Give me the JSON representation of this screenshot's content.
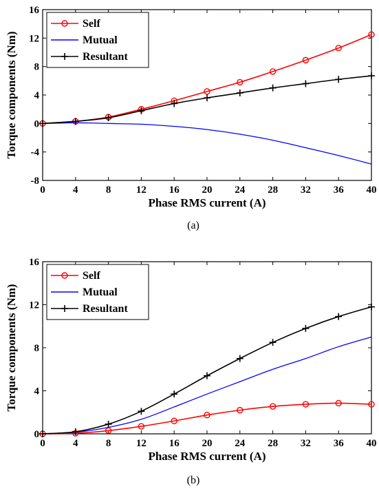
{
  "chart_data": [
    {
      "type": "line",
      "caption": "(a)",
      "xlabel": "Phase RMS current (A)",
      "ylabel": "Torque components (Nm)",
      "xlim": [
        0,
        40
      ],
      "ylim": [
        -8,
        16
      ],
      "xticks": [
        "0",
        "4",
        "8",
        "12",
        "16",
        "20",
        "24",
        "28",
        "32",
        "36",
        "40"
      ],
      "yticks": [
        "-8",
        "-4",
        "0",
        "4",
        "8",
        "12",
        "16"
      ],
      "legend_position": "top-left",
      "x": [
        0,
        4,
        8,
        12,
        16,
        20,
        24,
        28,
        32,
        36,
        40
      ],
      "series": [
        {
          "name": "Self",
          "color": "#ff0000",
          "marker": "circle",
          "values": [
            0,
            0.3,
            0.9,
            2.0,
            3.2,
            4.5,
            5.8,
            7.3,
            8.9,
            10.6,
            12.5
          ]
        },
        {
          "name": "Mutual",
          "color": "#0000ff",
          "marker": "none",
          "values": [
            0,
            0.1,
            0.0,
            -0.1,
            -0.4,
            -0.85,
            -1.5,
            -2.35,
            -3.4,
            -4.5,
            -5.7
          ]
        },
        {
          "name": "Resultant",
          "color": "#000000",
          "marker": "plus",
          "values": [
            0,
            0.3,
            0.8,
            1.8,
            2.8,
            3.6,
            4.3,
            5.0,
            5.6,
            6.2,
            6.7
          ]
        }
      ]
    },
    {
      "type": "line",
      "caption": "(b)",
      "xlabel": "Phase RMS current (A)",
      "ylabel": "Torque components (Nm)",
      "xlim": [
        0,
        40
      ],
      "ylim": [
        0,
        16
      ],
      "xticks": [
        "0",
        "4",
        "8",
        "12",
        "16",
        "20",
        "24",
        "28",
        "32",
        "36",
        "40"
      ],
      "yticks": [
        "0",
        "4",
        "8",
        "12",
        "16"
      ],
      "legend_position": "top-left",
      "x": [
        0,
        4,
        8,
        12,
        16,
        20,
        24,
        28,
        32,
        36,
        40
      ],
      "series": [
        {
          "name": "Self",
          "color": "#ff0000",
          "marker": "circle",
          "values": [
            0,
            0.05,
            0.3,
            0.7,
            1.2,
            1.75,
            2.2,
            2.55,
            2.75,
            2.85,
            2.75
          ]
        },
        {
          "name": "Mutual",
          "color": "#0000ff",
          "marker": "none",
          "values": [
            0,
            0.15,
            0.6,
            1.35,
            2.5,
            3.7,
            4.85,
            6.0,
            7.0,
            8.1,
            9.0
          ]
        },
        {
          "name": "Resultant",
          "color": "#000000",
          "marker": "plus",
          "values": [
            0,
            0.2,
            0.9,
            2.1,
            3.7,
            5.4,
            7.0,
            8.5,
            9.8,
            10.9,
            11.8
          ]
        }
      ]
    }
  ]
}
